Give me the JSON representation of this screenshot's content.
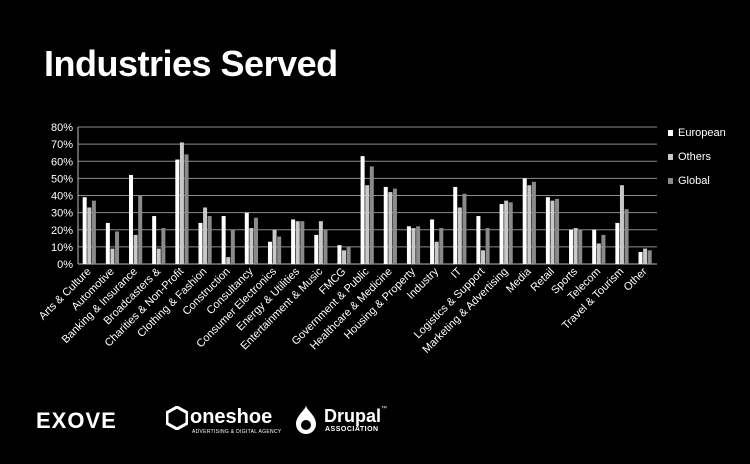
{
  "slide": {
    "title": "Industries Served"
  },
  "chart_data": {
    "type": "bar",
    "categories": [
      "Arts & Culture",
      "Automotive",
      "Banking & Insurance",
      "Broadcasters &",
      "Charities & Non-Profit",
      "Clothing & Fashion",
      "Construction",
      "Consultancy",
      "Consumer Electronics",
      "Energy & Utilities",
      "Entertainment & Music",
      "FMCG",
      "Government & Public",
      "Healthcare & Medicine",
      "Housing & Property",
      "Industry",
      "IT",
      "Logistics & Support",
      "Marketing & Advertising",
      "Media",
      "Retail",
      "Sports",
      "Telecom",
      "Travel & Tourism",
      "Other"
    ],
    "series": [
      {
        "name": "European",
        "color": "#ffffff",
        "values": [
          39,
          24,
          52,
          28,
          61,
          24,
          28,
          30,
          13,
          26,
          17,
          11,
          63,
          45,
          22,
          26,
          45,
          28,
          35,
          50,
          39,
          20,
          20,
          24,
          7
        ]
      },
      {
        "name": "Others",
        "color": "#c8c8c8",
        "values": [
          33,
          9,
          17,
          9,
          71,
          33,
          4,
          21,
          20,
          25,
          25,
          8,
          46,
          42,
          21,
          13,
          33,
          8,
          37,
          46,
          37,
          21,
          12,
          46,
          9
        ]
      },
      {
        "name": "Global",
        "color": "#8a8a8a",
        "values": [
          37,
          19,
          40,
          21,
          64,
          28,
          20,
          27,
          16,
          25,
          20,
          10,
          57,
          44,
          22,
          21,
          41,
          21,
          36,
          48,
          38,
          20,
          17,
          32,
          8
        ]
      }
    ],
    "yticks": [
      "0%",
      "10%",
      "20%",
      "30%",
      "40%",
      "50%",
      "60%",
      "70%",
      "80%"
    ],
    "ylim": [
      0,
      80
    ],
    "grid": true,
    "legend_position": "right"
  },
  "logos": {
    "exove": "EXOVE",
    "oneshoe": "oneshoe",
    "oneshoe_tagline": "ADVERTISING & DIGITAL AGENCY",
    "drupal": "Drupal",
    "drupal_tm": "™",
    "drupal_sub": "ASSOCIATION"
  }
}
